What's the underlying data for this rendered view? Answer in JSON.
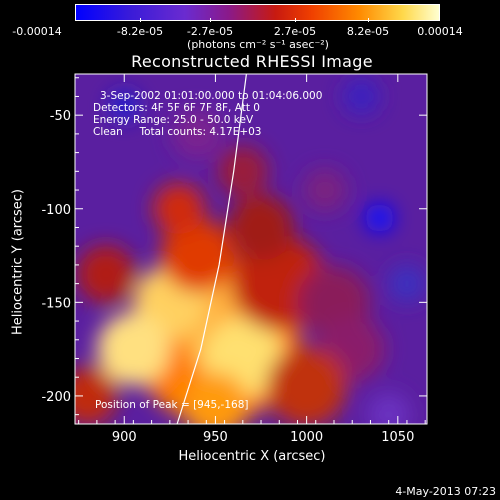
{
  "colorbar": {
    "tick_labels": [
      "-0.00014",
      "-8.2e-05",
      "-2.7e-05",
      "2.7e-05",
      "8.2e-05",
      "0.00014"
    ],
    "unit_label": "(photons cm⁻² s⁻¹ asec⁻²)"
  },
  "chart_data": {
    "type": "heatmap",
    "title": "Reconstructed RHESSI Image",
    "xlabel": "Heliocentric X (arcsec)",
    "ylabel": "Heliocentric Y (arcsec)",
    "xlim": [
      873,
      1066
    ],
    "ylim": [
      -215,
      -28
    ],
    "x_ticks": [
      900,
      950,
      1000,
      1050
    ],
    "y_ticks": [
      -50,
      -100,
      -150,
      -200
    ],
    "colorscale": [
      "#0000ff",
      "#6a2bd0",
      "#8a1a8a",
      "#c81a10",
      "#ff8a00",
      "#ffd84a",
      "#ffffd0"
    ],
    "limb_color": "#ffffff",
    "peak_position": [
      945,
      -168
    ],
    "annotations": {
      "time_range": "3-Sep-2002 01:01:00.000 to 01:04:06.000",
      "detectors": "Detectors: 4F 5F 6F 7F 8F, Att 0",
      "energy_range": "Energy Range: 25.0 - 50.0 keV",
      "method_counts": "Clean     Total counts: 4.17E+03",
      "peak": "Position of Peak = [945,-168]"
    }
  },
  "footer": {
    "date": "4-May-2013 07:23"
  }
}
